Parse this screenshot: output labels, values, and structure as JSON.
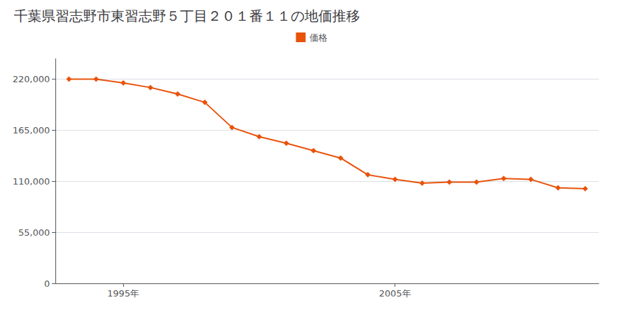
{
  "chart_data": {
    "type": "line",
    "title": "千葉県習志野市東習志野５丁目２０１番１１の地価推移",
    "x": [
      1993,
      1994,
      1995,
      1996,
      1997,
      1998,
      1999,
      2000,
      2001,
      2002,
      2003,
      2004,
      2005,
      2006,
      2007,
      2008,
      2009,
      2010,
      2011,
      2012
    ],
    "series": [
      {
        "name": "価格",
        "color": "#e8520a",
        "marker": "diamond",
        "values": [
          220000,
          220000,
          216000,
          211000,
          204000,
          195000,
          168000,
          158000,
          151000,
          143000,
          135000,
          117000,
          112000,
          108000,
          109000,
          109000,
          113000,
          112000,
          103000,
          102000
        ]
      }
    ],
    "xlim": [
      1992.5,
      2012.5
    ],
    "xticks": [
      {
        "value": 1995,
        "label": "1995年"
      },
      {
        "value": 2005,
        "label": "2005年"
      }
    ],
    "ylim": [
      0,
      242000
    ],
    "yticks": [
      0,
      {
        "value": 55000,
        "label": "55,000"
      },
      {
        "value": 110000,
        "label": "110,000"
      },
      {
        "value": 165000,
        "label": "165,000"
      },
      {
        "value": 220000,
        "label": "220,000"
      }
    ],
    "grid": "y",
    "legend": "top"
  }
}
